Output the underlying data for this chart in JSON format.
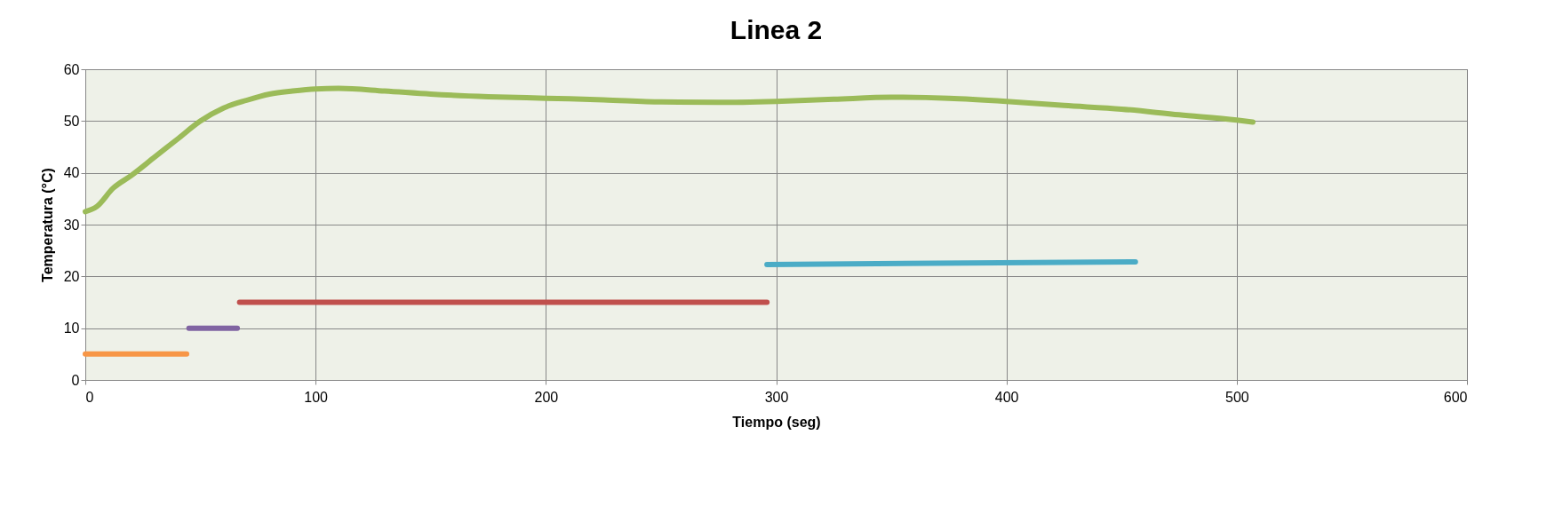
{
  "chart_data": {
    "type": "line",
    "title": "Linea 2",
    "xlabel": "Tiempo (seg)",
    "ylabel": "Temperatura (°C)",
    "xlim": [
      0,
      600
    ],
    "xticks": [
      0,
      100,
      200,
      300,
      400,
      500,
      600
    ],
    "ylim": [
      0,
      60
    ],
    "yticks": [
      0,
      10,
      20,
      30,
      40,
      50,
      60
    ],
    "grid": true,
    "marker": "none",
    "line_style": "solid",
    "series": [
      {
        "color": "#9bbb59",
        "x": [
          0,
          5,
          12,
          20,
          30,
          40,
          50,
          60,
          70,
          80,
          90,
          100,
          110,
          130,
          150,
          175,
          200,
          225,
          250,
          275,
          300,
          325,
          350,
          375,
          400,
          425,
          450,
          475,
          500,
          507
        ],
        "values": [
          32.5,
          33.5,
          37,
          39.5,
          43,
          46.5,
          50,
          52.5,
          54,
          55.2,
          55.8,
          56.2,
          56.3,
          55.8,
          55.2,
          54.7,
          54.4,
          54.1,
          53.7,
          53.6,
          53.8,
          54.2,
          54.6,
          54.4,
          53.8,
          53,
          52.3,
          51.2,
          50.2,
          49.8
        ]
      },
      {
        "color": "#f79646",
        "x": [
          0,
          44
        ],
        "values": [
          5,
          5
        ]
      },
      {
        "color": "#8064a2",
        "x": [
          45,
          66
        ],
        "values": [
          10,
          10
        ]
      },
      {
        "color": "#c0504d",
        "x": [
          67,
          296
        ],
        "values": [
          15,
          15
        ]
      },
      {
        "color": "#4bacc6",
        "x": [
          296,
          456
        ],
        "values": [
          22.3,
          22.8
        ]
      }
    ]
  }
}
